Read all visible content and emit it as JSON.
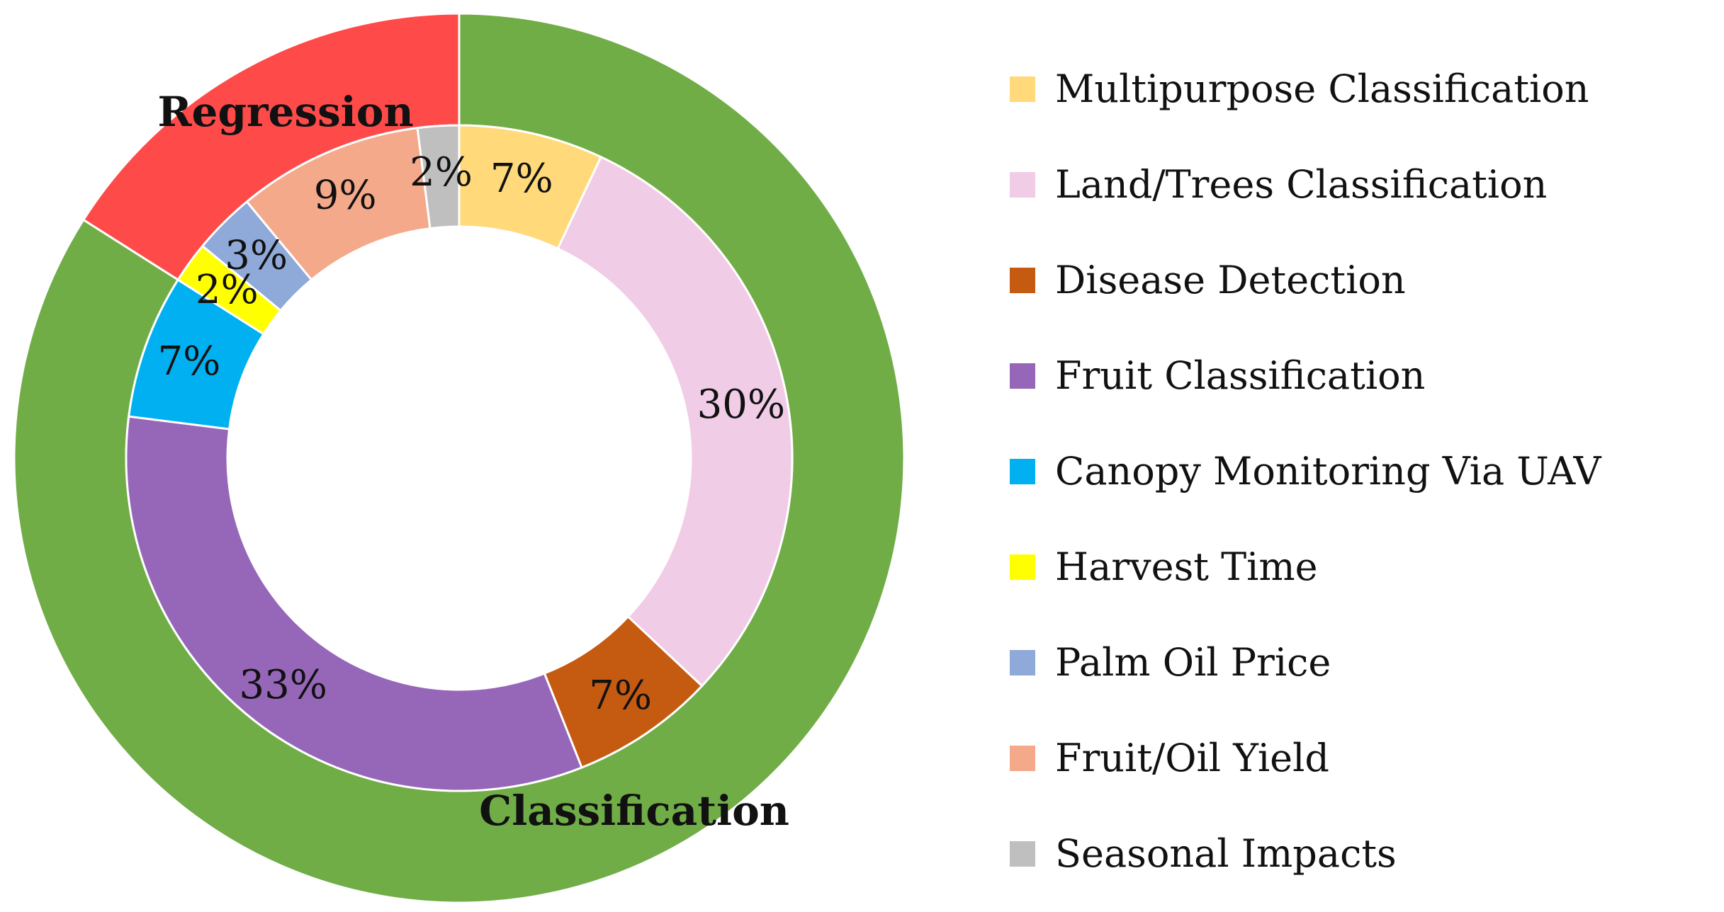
{
  "chart_data": {
    "type": "pie",
    "subtype": "double-donut",
    "outer_ring": {
      "slices": [
        {
          "name": "Regression",
          "value": 16,
          "color": "#ff4a4a"
        },
        {
          "name": "Classification",
          "value": 84,
          "color": "#70ad47"
        }
      ]
    },
    "inner_ring": {
      "slices": [
        {
          "name": "Multipurpose Classification",
          "value": 7,
          "label": "7%",
          "color": "#ffd97a"
        },
        {
          "name": "Land/Trees Classification",
          "value": 30,
          "label": "30%",
          "color": "#f0cce6"
        },
        {
          "name": "Disease Detection",
          "value": 7,
          "label": "7%",
          "color": "#c55a11"
        },
        {
          "name": "Fruit Classification",
          "value": 33,
          "label": "33%",
          "color": "#9666b8"
        },
        {
          "name": "Canopy Monitoring Via UAV",
          "value": 7,
          "label": "7%",
          "color": "#00b0f0"
        },
        {
          "name": "Harvest Time",
          "value": 2,
          "label": "2%",
          "color": "#ffff00"
        },
        {
          "name": "Palm Oil Price",
          "value": 3,
          "label": "3%",
          "color": "#8fa9d8"
        },
        {
          "name": "Fruit/Oil Yield",
          "value": 9,
          "label": "9%",
          "color": "#f4a98a"
        },
        {
          "name": "Seasonal Impacts",
          "value": 2,
          "label": "2%",
          "color": "#bfbfbf"
        }
      ]
    },
    "legend": {
      "placement": "right",
      "entries": [
        "Multipurpose Classification",
        "Land/Trees Classification",
        "Disease Detection",
        "Fruit Classification",
        "Canopy Monitoring Via UAV",
        "Harvest Time",
        "Palm Oil Price",
        "Fruit/Oil Yield",
        "Seasonal Impacts"
      ]
    }
  }
}
